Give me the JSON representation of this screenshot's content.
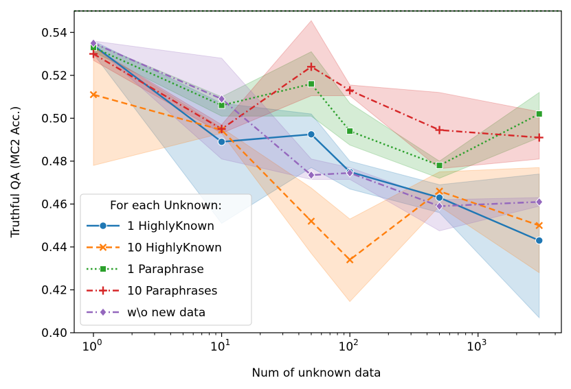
{
  "chart_data": {
    "type": "line",
    "xscale": "log",
    "xlabel": "Num of unknown data",
    "ylabel": "Truthful QA (MC2 Acc.)",
    "ylim": [
      0.4,
      0.55
    ],
    "xlim_log10": [
      -0.15,
      3.65
    ],
    "yticks": [
      0.4,
      0.42,
      0.44,
      0.46,
      0.48,
      0.5,
      0.52,
      0.54
    ],
    "ytick_labels": [
      "0.40",
      "0.42",
      "0.44",
      "0.46",
      "0.48",
      "0.50",
      "0.52",
      "0.54"
    ],
    "xticks": [
      {
        "value": 1,
        "base": "10",
        "exp": "0"
      },
      {
        "value": 10,
        "base": "10",
        "exp": "1"
      },
      {
        "value": 100,
        "base": "10",
        "exp": "2"
      },
      {
        "value": 1000,
        "base": "10",
        "exp": "3"
      }
    ],
    "reference_line": {
      "y": 0.55,
      "color": "#2ca02c",
      "style": "dotted"
    },
    "legend": {
      "title": "For each Unknown:",
      "position": "lower-left"
    },
    "x": [
      1,
      10,
      50,
      100,
      500,
      3000
    ],
    "series": [
      {
        "name": "1 HighlyKnown",
        "color": "#1f77b4",
        "dash": "solid",
        "marker": "circle",
        "x": [
          1,
          10,
          50,
          100,
          500,
          3000
        ],
        "values": [
          0.534,
          0.489,
          0.4925,
          0.475,
          0.463,
          0.443
        ],
        "upper": [
          0.536,
          0.507,
          0.502,
          0.48,
          0.469,
          0.474
        ],
        "lower": [
          0.53,
          0.451,
          0.477,
          0.467,
          0.456,
          0.407
        ]
      },
      {
        "name": "10 HighlyKnown",
        "color": "#ff7f0e",
        "dash": "dashed",
        "marker": "x",
        "x": [
          1,
          10,
          50,
          100,
          500,
          3000
        ],
        "values": [
          0.511,
          0.4945,
          0.452,
          0.434,
          0.466,
          0.45
        ],
        "upper": [
          0.533,
          0.4955,
          0.4675,
          0.453,
          0.475,
          0.477
        ],
        "lower": [
          0.478,
          0.493,
          0.437,
          0.4145,
          0.459,
          0.428
        ]
      },
      {
        "name": "1 Paraphrase",
        "color": "#2ca02c",
        "dash": "dotted",
        "marker": "square",
        "x": [
          1,
          10,
          50,
          100,
          500,
          3000
        ],
        "values": [
          0.533,
          0.506,
          0.516,
          0.494,
          0.478,
          0.502
        ],
        "upper": [
          0.535,
          0.51,
          0.531,
          0.507,
          0.48,
          0.512
        ],
        "lower": [
          0.531,
          0.501,
          0.501,
          0.4875,
          0.472,
          0.491
        ]
      },
      {
        "name": "10 Paraphrases",
        "color": "#d62728",
        "dash": "dashdot",
        "marker": "plus",
        "x": [
          1,
          10,
          50,
          100,
          500,
          3000
        ],
        "values": [
          0.53,
          0.495,
          0.524,
          0.513,
          0.4945,
          0.491
        ],
        "upper": [
          0.533,
          0.497,
          0.5455,
          0.5155,
          0.512,
          0.503
        ],
        "lower": [
          0.527,
          0.493,
          0.5105,
          0.5105,
          0.4765,
          0.481
        ]
      },
      {
        "name": "w\\o new data",
        "color": "#9467bd",
        "dash": "dashdot",
        "marker": "diamond",
        "x": [
          1,
          10,
          50,
          100,
          500,
          3000
        ],
        "values": [
          0.535,
          0.509,
          0.4735,
          0.4745,
          0.459,
          0.461
        ],
        "upper": [
          0.536,
          0.528,
          0.481,
          0.477,
          0.462,
          0.463
        ],
        "lower": [
          0.534,
          0.481,
          0.4715,
          0.4715,
          0.4475,
          0.459
        ]
      }
    ]
  }
}
